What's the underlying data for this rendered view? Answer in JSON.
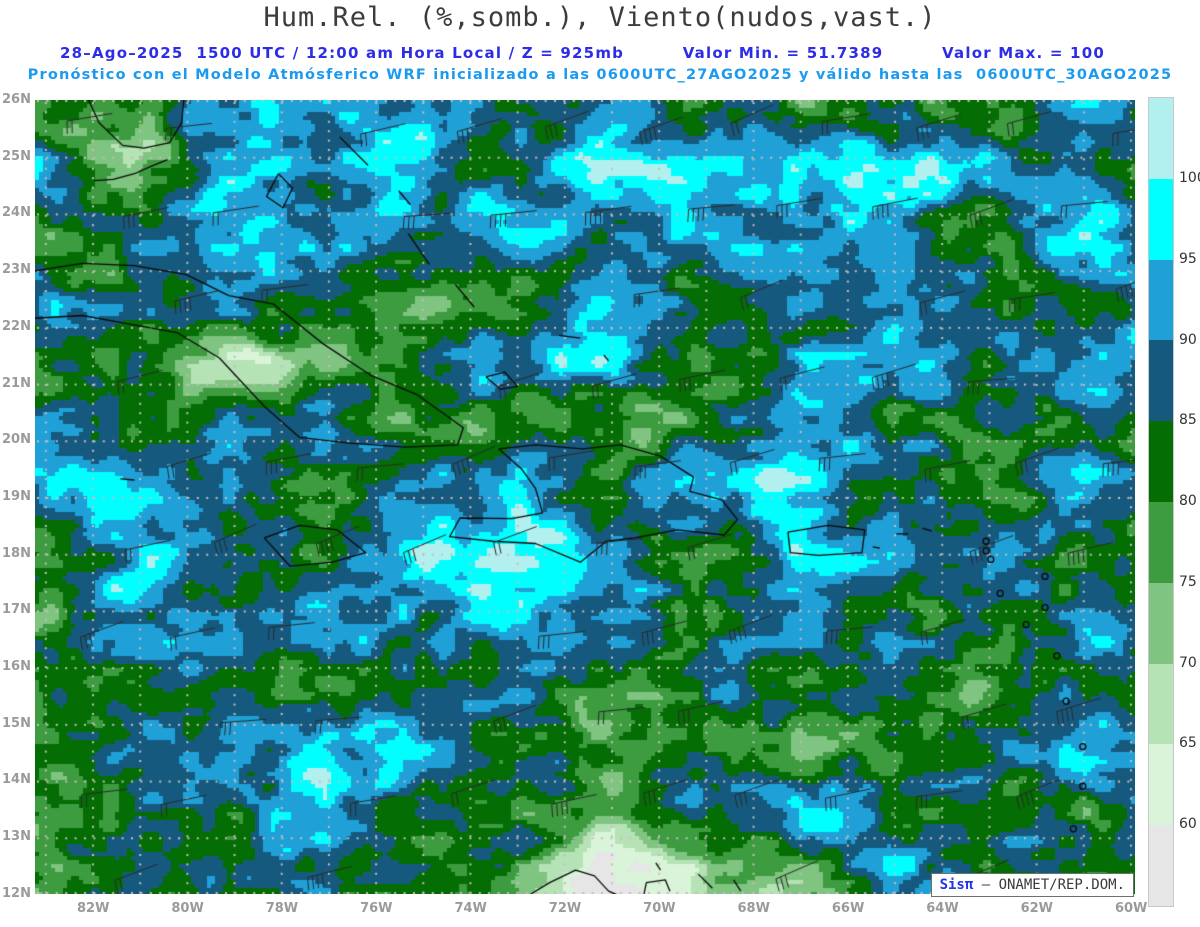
{
  "header": {
    "title": "Hum.Rel. (%,somb.), Viento(nudos,vast.)",
    "line1_left": "28–Ago–2025  1500 UTC / 12:00 am Hora Local / Z = 925mb",
    "valor_min": "Valor Min. = 51.7389",
    "valor_max": "Valor Max. = 100",
    "line2": "Pronóstico con el Modelo Atmósferico WRF inicializado a las 0600UTC_27AGO2025 y válido hasta las  0600UTC_30AGO2025"
  },
  "colors": {
    "title": "#3c3c3c",
    "line1": "#2d2de8",
    "line2": "#1b9af0",
    "axis_label": "#9a9a9a",
    "grid_dot": "#c9bcbc",
    "coastline": "#0a0a0a",
    "wind_barb": "#2a2a2a",
    "attrib_brand": "#2233ee",
    "attrib_text": "#3a3a3a"
  },
  "chart_data": {
    "type": "heatmap",
    "title": "Hum.Rel. (%,somb.), Viento(nudos,vast.)",
    "variable": "Humedad Relativa (sombreado)",
    "units": "%",
    "wind_overlay": "Viento (nudos, vastagos)",
    "level": "925mb",
    "valid_time": "28-Ago-2025 1500 UTC / 12:00 am Hora Local",
    "init_time": "0600UTC_27AGO2025",
    "valid_until": "0600UTC_30AGO2025",
    "value_min": 51.7389,
    "value_max": 100,
    "lat_ticks": [
      "26N",
      "25N",
      "24N",
      "23N",
      "22N",
      "21N",
      "20N",
      "19N",
      "18N",
      "17N",
      "16N",
      "15N",
      "14N",
      "13N",
      "12N"
    ],
    "lon_ticks": [
      "82W",
      "80W",
      "78W",
      "76W",
      "74W",
      "72W",
      "70W",
      "68W",
      "66W",
      "64W",
      "62W",
      "60W"
    ],
    "lat_range": [
      12,
      26
    ],
    "lon_range_w": [
      83.2,
      59.9
    ],
    "grid": "dotted graticule every 1 degree",
    "legend_position": "right",
    "colorbar": {
      "labels": [
        "100",
        "95",
        "90",
        "85",
        "80",
        "75",
        "70",
        "65",
        "60"
      ],
      "levels": [
        60,
        65,
        70,
        75,
        80,
        85,
        90,
        95,
        100
      ],
      "colors_top_to_bottom": [
        "#b2f0ef",
        "#00ffff",
        "#1fa0d7",
        "#16597e",
        "#046d04",
        "#3d9b40",
        "#7fc480",
        "#b5e3b5",
        "#d9f4d9",
        "#e6e6e6"
      ]
    }
  },
  "attribution": {
    "brand": "Sisπ",
    "text": " – ONAMET/REP.DOM."
  }
}
